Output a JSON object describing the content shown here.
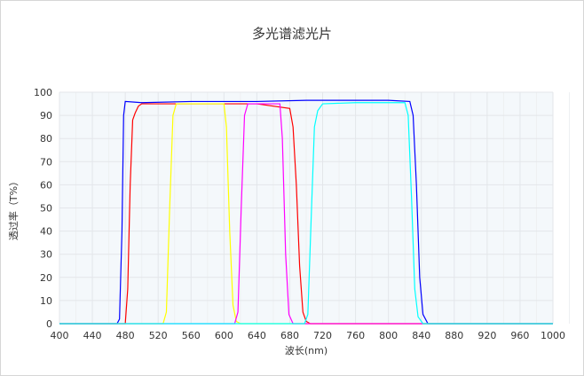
{
  "chart_data": {
    "type": "line",
    "title": "多光谱滤光片",
    "xlabel": "波长(nm)",
    "ylabel": "透过率（T%）",
    "xlim": [
      400,
      1000
    ],
    "ylim": [
      0,
      100
    ],
    "xticks": [
      400,
      440,
      480,
      520,
      560,
      600,
      640,
      680,
      720,
      760,
      800,
      840,
      880,
      920,
      960,
      1000
    ],
    "yticks": [
      0,
      10,
      20,
      30,
      40,
      50,
      60,
      70,
      80,
      90,
      100
    ],
    "grid": true,
    "series": [
      {
        "color": "#0000ff",
        "x": [
          400,
          470,
          473,
          476,
          478,
          480,
          500,
          560,
          640,
          700,
          760,
          800,
          826,
          830,
          834,
          838,
          842,
          848,
          1000
        ],
        "y": [
          0,
          0,
          2,
          40,
          90,
          96,
          95.5,
          96,
          96,
          96.5,
          96.5,
          96.5,
          96,
          90,
          60,
          20,
          4,
          0,
          0
        ]
      },
      {
        "color": "#ff0000",
        "x": [
          400,
          480,
          483,
          486,
          489,
          492,
          496,
          500,
          560,
          640,
          680,
          684,
          688,
          692,
          696,
          700,
          705,
          1000
        ],
        "y": [
          0,
          0,
          15,
          60,
          88,
          91,
          94,
          95,
          95,
          95,
          93,
          85,
          60,
          25,
          5,
          1,
          0,
          0
        ]
      },
      {
        "color": "#ffff00",
        "x": [
          400,
          526,
          530,
          534,
          538,
          542,
          560,
          600,
          603,
          607,
          611,
          615,
          620,
          1000
        ],
        "y": [
          0,
          0,
          5,
          50,
          90,
          95,
          95,
          95,
          85,
          40,
          8,
          1,
          0,
          0
        ]
      },
      {
        "color": "#ff00ff",
        "x": [
          400,
          613,
          617,
          621,
          625,
          629,
          640,
          668,
          671,
          675,
          679,
          684,
          1000
        ],
        "y": [
          0,
          0,
          5,
          50,
          90,
          95,
          95,
          95,
          80,
          30,
          4,
          0,
          0
        ]
      },
      {
        "color": "#00ffff",
        "x": [
          400,
          698,
          702,
          706,
          710,
          714,
          720,
          760,
          820,
          824,
          828,
          832,
          836,
          842,
          1000
        ],
        "y": [
          0,
          0,
          4,
          45,
          85,
          92,
          95,
          95.5,
          95.5,
          90,
          55,
          15,
          3,
          0,
          0
        ]
      }
    ]
  }
}
